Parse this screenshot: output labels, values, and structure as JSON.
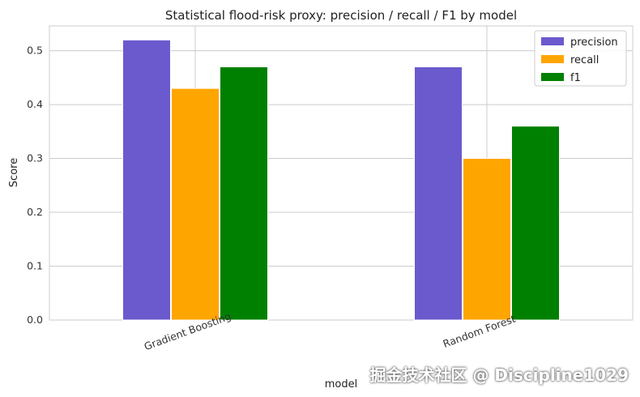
{
  "chart_data": {
    "type": "bar",
    "title": "Statistical flood-risk proxy: precision / recall / F1 by model",
    "xlabel": "model",
    "ylabel": "Score",
    "categories": [
      "Gradient Boosting",
      "Random Forest"
    ],
    "series": [
      {
        "name": "precision",
        "values": [
          0.52,
          0.47
        ],
        "color": "#6a5acd"
      },
      {
        "name": "recall",
        "values": [
          0.43,
          0.3
        ],
        "color": "#ffa500"
      },
      {
        "name": "f1",
        "values": [
          0.47,
          0.36
        ],
        "color": "#008000"
      }
    ],
    "ylim": [
      0,
      0.546
    ],
    "yticks": [
      "0.0",
      "0.1",
      "0.2",
      "0.3",
      "0.4",
      "0.5"
    ],
    "grid": true,
    "legend": "top-right"
  },
  "watermark": "掘金技术社区 @ Discipline1029"
}
